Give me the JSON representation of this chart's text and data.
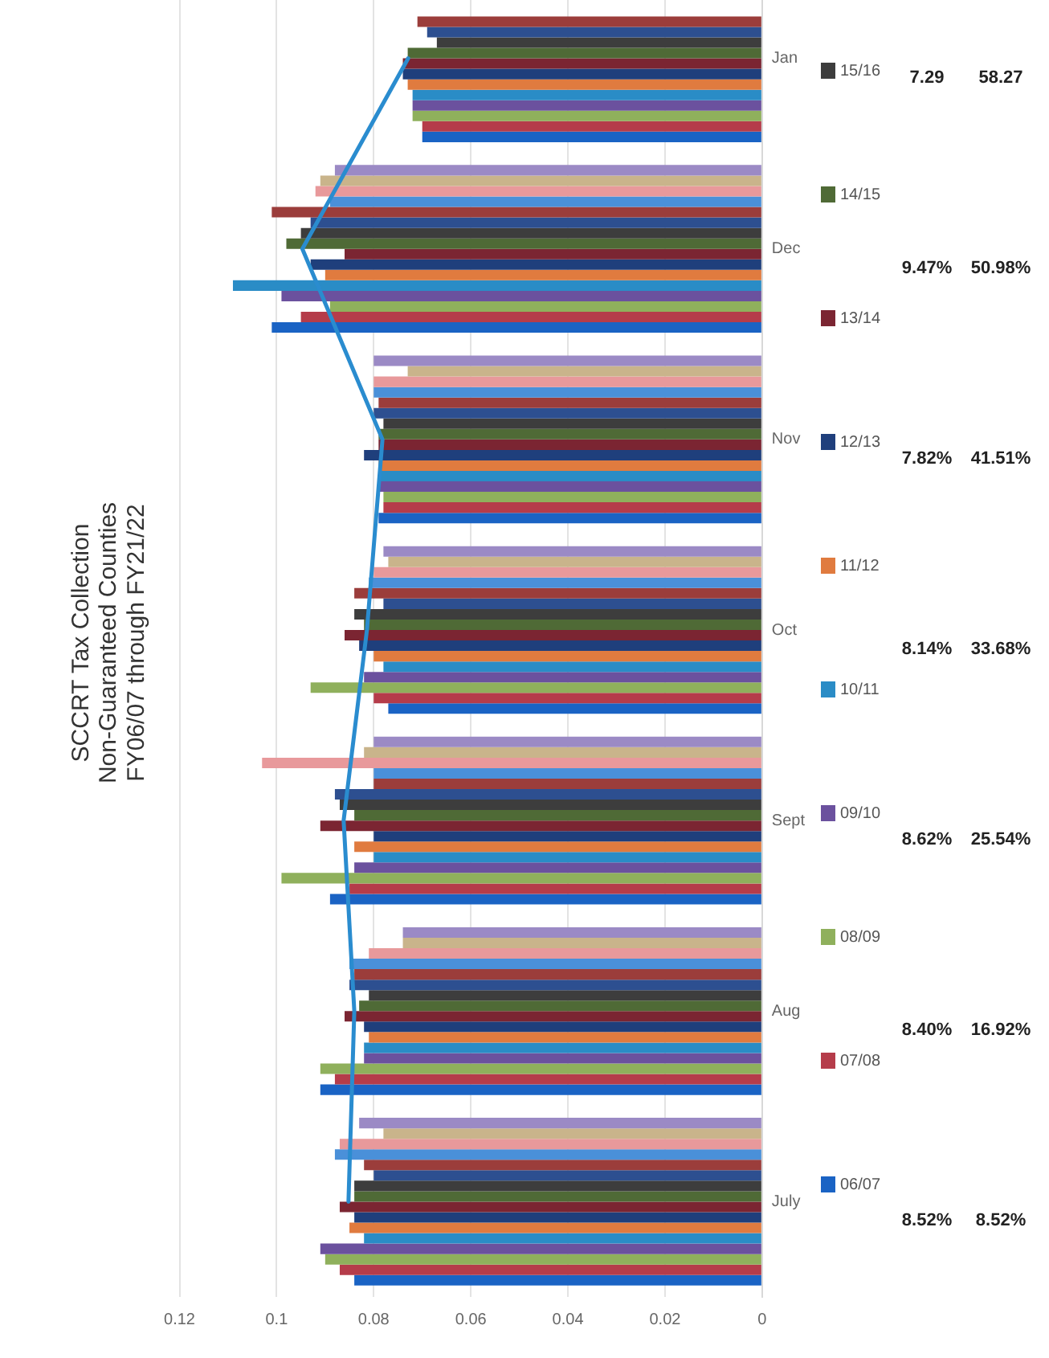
{
  "chart_data": {
    "type": "bar",
    "orientation": "horizontal",
    "title": "SCCRT Tax Collection\nNon-Guaranteed Counties\nFY06/07 through FY21/22",
    "categories": [
      "Jan",
      "Dec",
      "Nov",
      "Oct",
      "Sept",
      "Aug",
      "July"
    ],
    "xlim": [
      0.12,
      0
    ],
    "xticks": [
      0,
      0.02,
      0.04,
      0.06,
      0.08,
      0.1,
      0.12
    ],
    "grid": "x",
    "legend": "right",
    "annotations": [
      "7.29",
      "9.47%",
      "7.82%",
      "8.14%",
      "8.62%",
      "8.40%",
      "8.52%",
      "58.27",
      "50.98%",
      "41.51%",
      "33.68%",
      "25.54%",
      "16.92%",
      "8.52%"
    ],
    "series": [
      {
        "name": "06/07",
        "color": "#1a63c4",
        "values": [
          0.07,
          0.101,
          0.079,
          0.077,
          0.089,
          0.091,
          0.084
        ]
      },
      {
        "name": "07/08",
        "color": "#b53c4a",
        "values": [
          0.07,
          0.095,
          0.078,
          0.08,
          0.085,
          0.088,
          0.087
        ]
      },
      {
        "name": "08/09",
        "color": "#8fb05c",
        "values": [
          0.072,
          0.089,
          0.078,
          0.093,
          0.099,
          0.091,
          0.09
        ]
      },
      {
        "name": "09/10",
        "color": "#6b519e",
        "values": [
          0.072,
          0.099,
          0.079,
          0.082,
          0.084,
          0.082,
          0.091
        ]
      },
      {
        "name": "10/11",
        "color": "#2a8cc6",
        "values": [
          0.072,
          0.109,
          0.079,
          0.078,
          0.08,
          0.082,
          0.082
        ]
      },
      {
        "name": "11/12",
        "color": "#e07b3f",
        "values": [
          0.073,
          0.09,
          0.079,
          0.08,
          0.084,
          0.081,
          0.085
        ]
      },
      {
        "name": "12/13",
        "color": "#1f3f7c",
        "values": [
          0.074,
          0.093,
          0.082,
          0.083,
          0.08,
          0.082,
          0.084
        ]
      },
      {
        "name": "13/14",
        "color": "#7b2532",
        "values": [
          0.074,
          0.086,
          0.079,
          0.086,
          0.091,
          0.086,
          0.087
        ]
      },
      {
        "name": "14/15",
        "color": "#4f6a36",
        "values": [
          0.073,
          0.098,
          0.079,
          0.082,
          0.084,
          0.083,
          0.084
        ]
      },
      {
        "name": "15/16",
        "color": "#3d3d3d",
        "values": [
          0.067,
          0.095,
          0.078,
          0.084,
          0.087,
          0.081,
          0.084
        ]
      },
      {
        "color": "#2d4f90",
        "values": [
          0.069,
          0.093,
          0.08,
          0.078,
          0.088,
          0.085,
          0.08
        ]
      },
      {
        "color": "#9b3d3b",
        "values": [
          0.071,
          0.101,
          0.079,
          0.084,
          0.08,
          0.084,
          0.082
        ]
      },
      {
        "color": "#4a90d9",
        "values": [
          null,
          0.089,
          0.08,
          0.081,
          0.08,
          0.085,
          0.088
        ]
      },
      {
        "color": "#e8999b",
        "values": [
          null,
          0.092,
          0.08,
          0.08,
          0.103,
          0.081,
          0.087
        ]
      },
      {
        "color": "#c9b48b",
        "values": [
          null,
          0.091,
          0.073,
          0.077,
          0.082,
          0.074,
          0.078
        ]
      },
      {
        "color": "#9b8ac5",
        "values": [
          null,
          0.088,
          0.08,
          0.078,
          0.08,
          0.074,
          0.083
        ]
      },
      {
        "type": "line",
        "color": "#2a8ccf",
        "marker": "none",
        "values": [
          0.0729,
          0.0947,
          0.0782,
          0.0814,
          0.0862,
          0.084,
          0.0852
        ]
      }
    ]
  }
}
